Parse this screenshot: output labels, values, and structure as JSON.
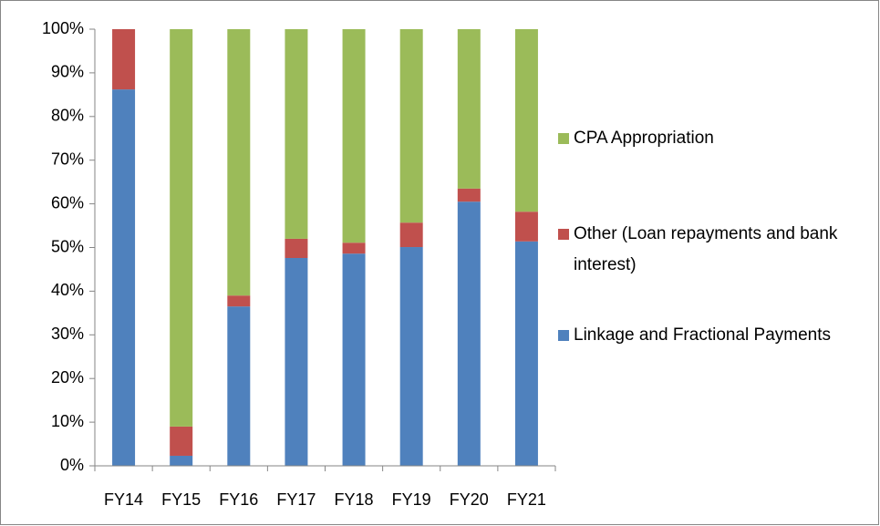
{
  "chart_data": {
    "type": "stacked_bar",
    "categories": [
      "FY14",
      "FY15",
      "FY16",
      "FY17",
      "FY18",
      "FY19",
      "FY20",
      "FY21"
    ],
    "series": [
      {
        "name": "Linkage and Fractional Payments",
        "color": "#4f81bd",
        "values": [
          86.2,
          2.3,
          36.5,
          47.6,
          48.6,
          50.1,
          60.5,
          51.4
        ]
      },
      {
        "name": "Other (Loan repayments and bank interest)",
        "color": "#c0504d",
        "values": [
          13.8,
          6.7,
          2.5,
          4.4,
          2.5,
          5.6,
          3.0,
          6.8
        ]
      },
      {
        "name": "CPA Appropriation",
        "color": "#9bbb59",
        "values": [
          0,
          91.0,
          61.0,
          48.0,
          48.9,
          44.3,
          36.5,
          41.8
        ]
      }
    ],
    "ylim": [
      0,
      100
    ],
    "yticks": [
      {
        "value": 0,
        "label": "0%"
      },
      {
        "value": 10,
        "label": "10%"
      },
      {
        "value": 20,
        "label": "20%"
      },
      {
        "value": 30,
        "label": "30%"
      },
      {
        "value": 40,
        "label": "40%"
      },
      {
        "value": 50,
        "label": "50%"
      },
      {
        "value": 60,
        "label": "60%"
      },
      {
        "value": 70,
        "label": "70%"
      },
      {
        "value": 80,
        "label": "80%"
      },
      {
        "value": 90,
        "label": "90%"
      },
      {
        "value": 100,
        "label": "100%"
      }
    ],
    "grid": false,
    "legend": "right"
  }
}
